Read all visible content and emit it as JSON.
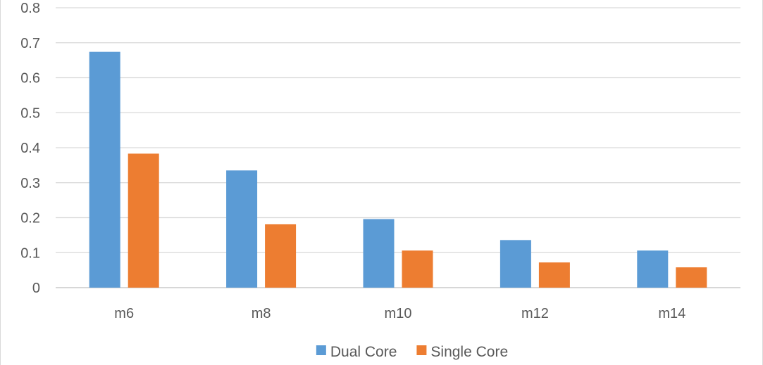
{
  "chart_data": {
    "type": "bar",
    "title": "",
    "xlabel": "",
    "ylabel": "",
    "categories": [
      "m6",
      "m8",
      "m10",
      "m12",
      "m14"
    ],
    "series": [
      {
        "name": "Dual Core",
        "color": "#5b9bd5",
        "values": [
          0.674,
          0.335,
          0.196,
          0.136,
          0.106
        ]
      },
      {
        "name": "Single Core",
        "color": "#ed7d31",
        "values": [
          0.383,
          0.181,
          0.106,
          0.072,
          0.058
        ]
      }
    ],
    "ylim": [
      0,
      0.8
    ],
    "yticks": [
      "0",
      "0.1",
      "0.2",
      "0.3",
      "0.4",
      "0.5",
      "0.6",
      "0.7",
      "0.8"
    ],
    "grid": true,
    "legend_position": "bottom"
  }
}
